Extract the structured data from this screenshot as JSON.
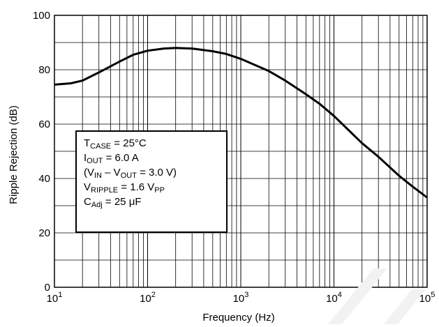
{
  "chart_data": {
    "type": "line",
    "title": "",
    "xlabel": "Frequency (Hz)",
    "ylabel": "Ripple Rejection (dB)",
    "xscale": "log",
    "xlim": [
      10,
      100000
    ],
    "ylim": [
      0,
      100
    ],
    "grid": true,
    "x_ticks": [
      {
        "value": 10,
        "base": "10",
        "exp": "1"
      },
      {
        "value": 100,
        "base": "10",
        "exp": "2"
      },
      {
        "value": 1000,
        "base": "10",
        "exp": "3"
      },
      {
        "value": 10000,
        "base": "10",
        "exp": "4"
      },
      {
        "value": 100000,
        "base": "10",
        "exp": "5"
      }
    ],
    "y_ticks": [
      "0",
      "20",
      "40",
      "60",
      "80",
      "100"
    ],
    "series": [
      {
        "x": [
          10,
          15,
          20,
          30,
          50,
          70,
          100,
          150,
          200,
          300,
          500,
          700,
          1000,
          2000,
          3000,
          5000,
          7000,
          10000,
          20000,
          30000,
          50000,
          70000,
          100000
        ],
        "values": [
          74.5,
          75,
          76,
          79,
          83,
          85.5,
          87,
          87.8,
          88,
          87.8,
          86.8,
          85.8,
          84,
          79.5,
          76,
          71,
          67.5,
          63,
          53,
          48,
          41,
          37,
          33
        ]
      }
    ],
    "legend_lines": [
      [
        {
          "t": "T"
        },
        {
          "t": "CASE",
          "sub": true
        },
        {
          "t": " = 25°C"
        }
      ],
      [
        {
          "t": "I"
        },
        {
          "t": "OUT",
          "sub": true
        },
        {
          "t": " = 6.0 A"
        }
      ],
      [
        {
          "t": "(V"
        },
        {
          "t": "IN",
          "sub": true
        },
        {
          "t": " – V"
        },
        {
          "t": "OUT",
          "sub": true
        },
        {
          "t": " = 3.0 V)"
        }
      ],
      [
        {
          "t": "V"
        },
        {
          "t": "RIPPLE",
          "sub": true
        },
        {
          "t": " = 1.6 V"
        },
        {
          "t": "PP",
          "sub": true
        }
      ],
      [
        {
          "t": "C"
        },
        {
          "t": "Adj",
          "sub": true
        },
        {
          "t": " = 25 μF"
        }
      ]
    ],
    "colors": {
      "line": "#000000",
      "grid": "#000000",
      "background": "#ffffff"
    }
  }
}
